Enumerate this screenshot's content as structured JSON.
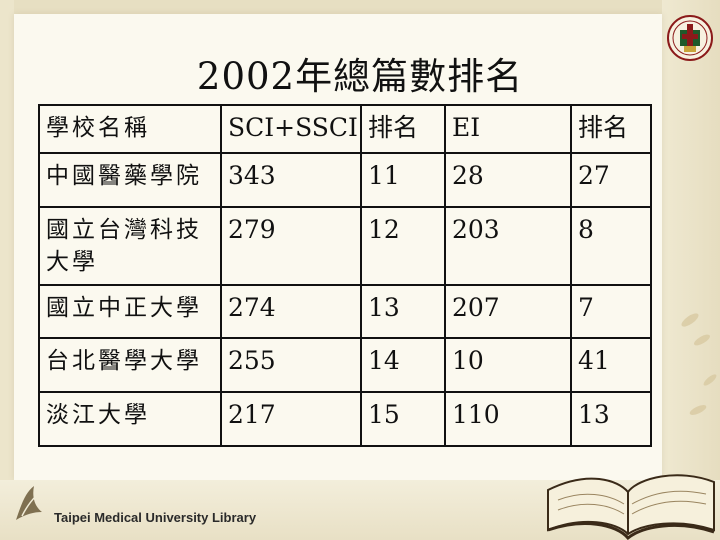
{
  "title": "2002年總篇數排名",
  "table": {
    "headers": [
      "學校名稱",
      "SCI+SSCI",
      "排名",
      "EI",
      "排名"
    ],
    "rows": [
      [
        "中國醫藥學院",
        "343",
        "11",
        "28",
        "27"
      ],
      [
        "國立台灣科技大學",
        "279",
        "12",
        "203",
        "8"
      ],
      [
        "國立中正大學",
        "274",
        "13",
        "207",
        "7"
      ],
      [
        "台北醫學大學",
        "255",
        "14",
        "10",
        "41"
      ],
      [
        "淡江大學",
        "217",
        "15",
        "110",
        "13"
      ]
    ]
  },
  "footer": {
    "library_name": "Taipei Medical University Library"
  },
  "colors": {
    "background": "#f1ecd7",
    "paper": "#fbf9ef",
    "text": "#111111",
    "accent": "#8b1a1a"
  },
  "icons": {
    "logo": "university-seal-icon",
    "library": "library-mark-icon",
    "book": "open-book-icon"
  }
}
